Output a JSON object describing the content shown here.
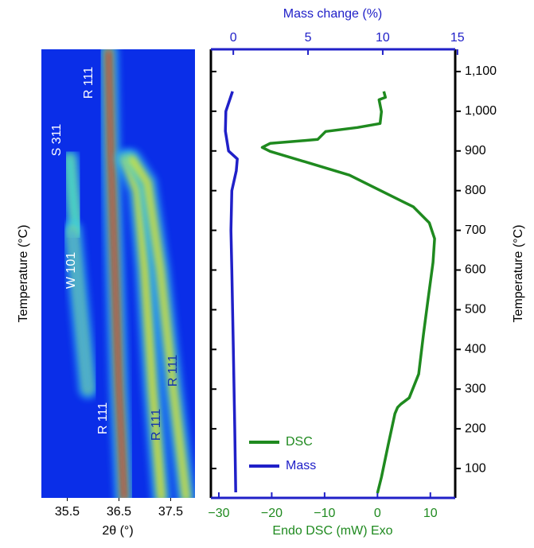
{
  "chart_data": [
    {
      "type": "heatmap",
      "xlabel": "2θ (°)",
      "ylabel": "Temperature (°C)",
      "xlim": [
        35.0,
        37.97
      ],
      "ylim": [
        26,
        1156
      ],
      "xticks": [
        35.5,
        36.5,
        37.5
      ],
      "background": "#0a2ee8",
      "ridges": [
        {
          "color": "#d81c10",
          "x": [
            36.3,
            36.34,
            36.42,
            36.5,
            36.6
          ],
          "y": [
            1150,
            900,
            600,
            300,
            26
          ]
        },
        {
          "color": "#f2e020",
          "x": [
            36.62,
            36.86,
            37.0,
            37.15,
            37.32
          ],
          "y": [
            880,
            800,
            600,
            300,
            26
          ]
        },
        {
          "color": "#e8e030",
          "x": [
            36.75,
            37.05,
            37.3,
            37.55,
            37.8
          ],
          "y": [
            880,
            820,
            600,
            300,
            26
          ]
        },
        {
          "color": "#30d8e8",
          "x": [
            35.55,
            35.6,
            35.68
          ],
          "y": [
            880,
            800,
            700
          ]
        },
        {
          "color": "#3aa0f0",
          "x": [
            35.6,
            35.75,
            35.9
          ],
          "y": [
            700,
            500,
            300
          ]
        }
      ],
      "annotations": [
        "R 111",
        "S 311",
        "W 101",
        "R 111",
        "R 111",
        "R 111"
      ]
    },
    {
      "type": "line",
      "xlabel": "Endo DSC (mW) Exo",
      "x2label": "Mass change (%)",
      "ylabel": "Temperature (°C)",
      "xlim": [
        -31.5,
        14.7
      ],
      "x2lim": [
        -1.5,
        14.85
      ],
      "ylim": [
        26,
        1156
      ],
      "xticks": [
        {
          "value": -30,
          "label": "−30"
        },
        {
          "value": -20,
          "label": "−20"
        },
        {
          "value": -10,
          "label": "−10"
        },
        0,
        10
      ],
      "x2ticks": [
        0,
        5,
        10,
        15
      ],
      "yticks": [
        100,
        200,
        300,
        400,
        500,
        600,
        700,
        800,
        900,
        {
          "value": 1000,
          "label": "1,000"
        },
        {
          "value": 1100,
          "label": "1,100"
        }
      ],
      "legend": "lower left",
      "series": [
        {
          "name": "DSC",
          "color": "#1f8a1f",
          "axis": "x",
          "x": [
            0,
            0.75,
            2,
            3.3,
            3.8,
            4.4,
            6,
            7.8,
            8.7,
            9.5,
            10.5,
            10.8,
            9.8,
            6.8,
            0.75,
            -5.3,
            -12.8,
            -20.3,
            -21.8,
            -20.3,
            -11.3,
            -9.8,
            -3.8,
            0.5,
            0.75,
            0.3,
            1.5,
            1.2
          ],
          "y": [
            38,
            78,
            158,
            238,
            254,
            262,
            278,
            338,
            438,
            519,
            619,
            679,
            719,
            759,
            799,
            839,
            869,
            899,
            909,
            919,
            929,
            949,
            959,
            969,
            999,
            1029,
            1035,
            1050
          ]
        },
        {
          "name": "Mass",
          "color": "#2020c8",
          "axis": "x2",
          "x": [
            0.16,
            0.1,
            0.0,
            -0.1,
            -0.16,
            -0.1,
            0.2,
            0.27,
            -0.32,
            -0.53,
            -0.5,
            -0.05
          ],
          "y": [
            40,
            200,
            400,
            600,
            700,
            800,
            850,
            880,
            900,
            950,
            1000,
            1050
          ]
        }
      ]
    }
  ]
}
